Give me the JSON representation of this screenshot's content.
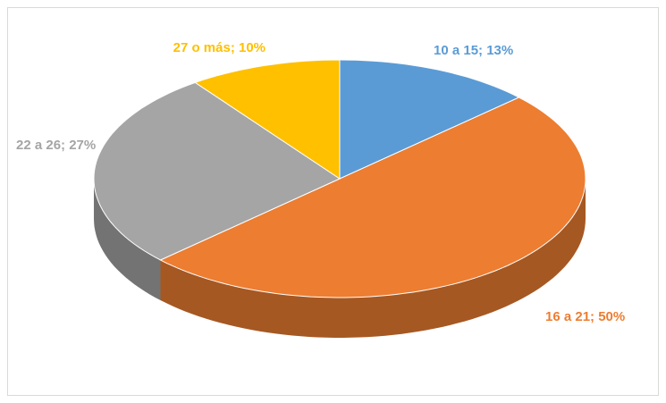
{
  "chart_data": {
    "type": "pie",
    "categories": [
      "10 a 15",
      "16 a 21",
      "22 a 26",
      "27 o más"
    ],
    "values": [
      13,
      50,
      27,
      10
    ],
    "value_labels": [
      "10 a 15; 13%",
      "16 a 21; 50%",
      "22 a 26; 27%",
      "27 o más; 10%"
    ],
    "colors": [
      "#5b9bd5",
      "#ed7d31",
      "#a5a5a5",
      "#ffc000"
    ]
  }
}
